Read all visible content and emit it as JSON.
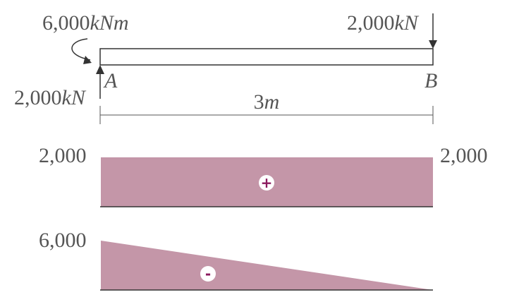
{
  "beam": {
    "moment_value": "6,000",
    "moment_unit": "kNm",
    "right_force_value": "2,000",
    "right_force_unit": "kN",
    "left_force_value": "2,000",
    "left_force_unit": "kN",
    "support_a": "A",
    "support_b": "B",
    "span_value": "3",
    "span_unit": "m"
  },
  "shear_diagram": {
    "left_value": "2,000",
    "right_value": "2,000",
    "sign": "+"
  },
  "moment_diagram": {
    "left_value": "6,000",
    "sign": "-"
  },
  "colors": {
    "fill": "#c496a8",
    "sign": "#8b1a5e",
    "text": "#555555",
    "line": "#333333"
  }
}
